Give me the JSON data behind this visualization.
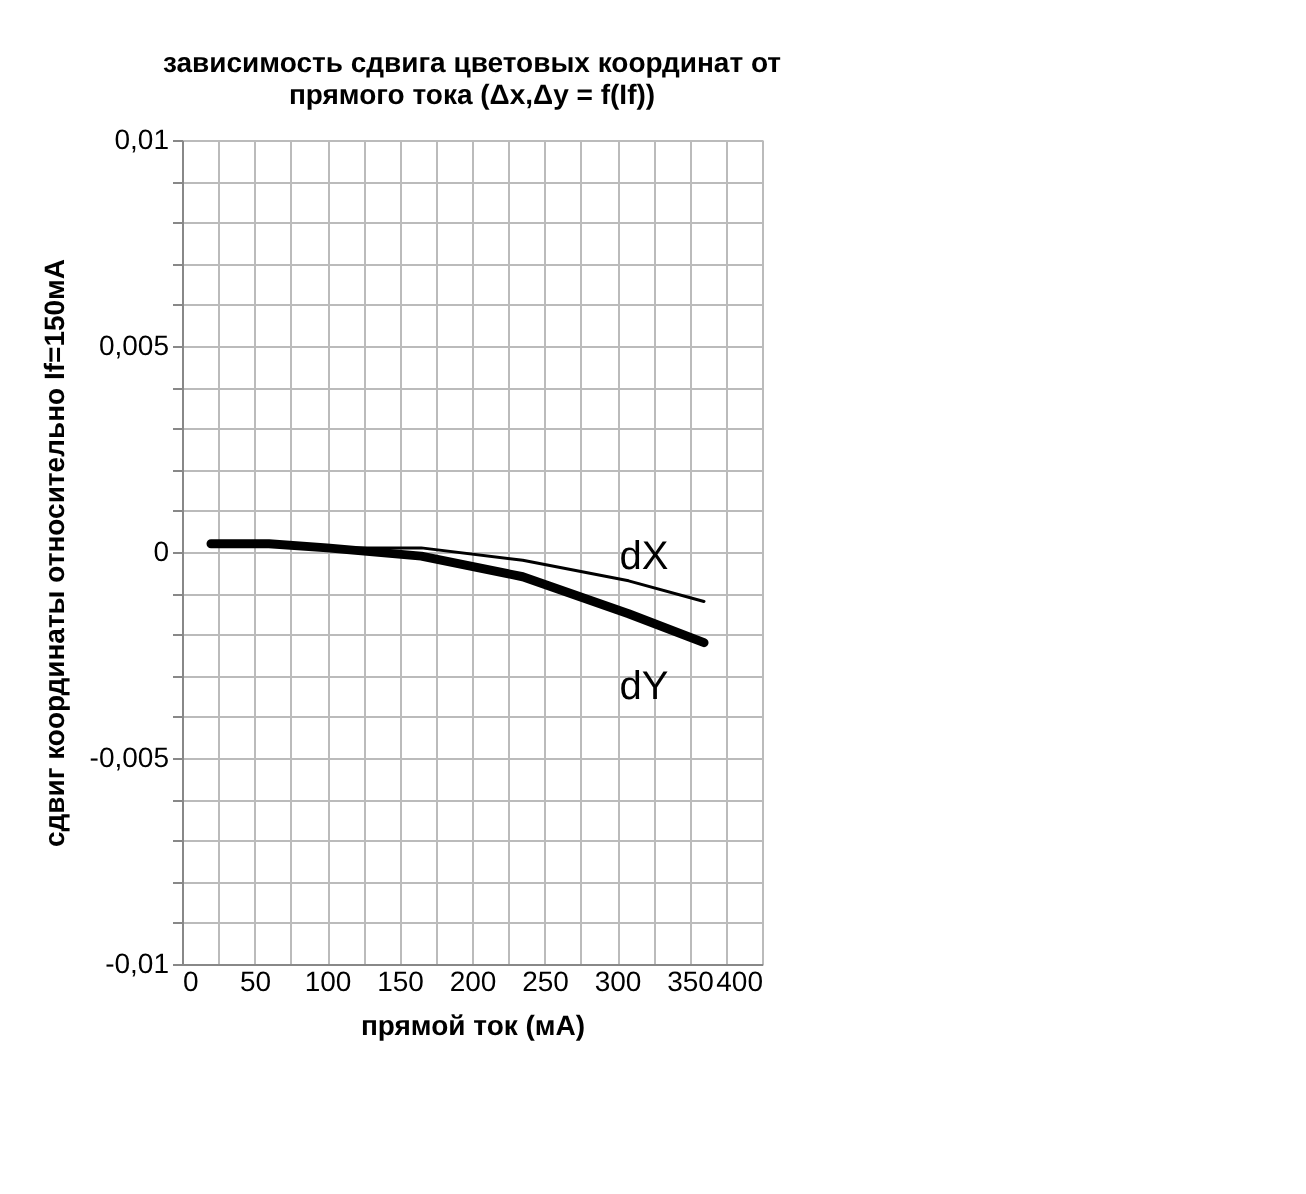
{
  "chart_data": {
    "type": "line",
    "title": [
      "зависимость сдвига цветовых координат от",
      "прямого тока (Δx,Δy = f(If))"
    ],
    "xlabel": "прямой ток (мА)",
    "ylabel": "сдвиг координаты относительно If=150мА",
    "x": [
      20,
      60,
      100,
      165,
      235,
      308,
      360
    ],
    "series": [
      {
        "name": "dX",
        "color": "#000000",
        "values": [
          0.0002,
          0.0002,
          0.0001,
          0.0001,
          -0.0002,
          -0.0007,
          -0.0012
        ]
      },
      {
        "name": "dY",
        "color": "#000000",
        "values": [
          0.0002,
          0.0002,
          0.0001,
          -0.0001,
          -0.0006,
          -0.0015,
          -0.0022
        ]
      }
    ],
    "xlim": [
      0,
      400
    ],
    "ylim": [
      -0.01,
      0.01
    ],
    "xticks": [
      0,
      {
        "value": 25,
        "label": null
      },
      50,
      {
        "value": 75,
        "label": null
      },
      100,
      {
        "value": 125,
        "label": null
      },
      150,
      {
        "value": 175,
        "label": null
      },
      200,
      {
        "value": 225,
        "label": null
      },
      250,
      {
        "value": 275,
        "label": null
      },
      300,
      {
        "value": 325,
        "label": null
      },
      350,
      {
        "value": 375,
        "label": null
      },
      400
    ],
    "yticks": [
      {
        "value": -0.01,
        "label": "-0,01"
      },
      {
        "value": -0.009,
        "label": null
      },
      {
        "value": -0.008,
        "label": null
      },
      {
        "value": -0.007,
        "label": null
      },
      {
        "value": -0.006,
        "label": null
      },
      {
        "value": -0.005,
        "label": "-0,005"
      },
      {
        "value": -0.004,
        "label": null
      },
      {
        "value": -0.003,
        "label": null
      },
      {
        "value": -0.002,
        "label": null
      },
      {
        "value": -0.001,
        "label": null
      },
      {
        "value": 0,
        "label": "0"
      },
      {
        "value": 0.001,
        "label": null
      },
      {
        "value": 0.002,
        "label": null
      },
      {
        "value": 0.003,
        "label": null
      },
      {
        "value": 0.004,
        "label": null
      },
      {
        "value": 0.005,
        "label": "0,005"
      },
      {
        "value": 0.006,
        "label": null
      },
      {
        "value": 0.007,
        "label": null
      },
      {
        "value": 0.008,
        "label": null
      },
      {
        "value": 0.009,
        "label": null
      },
      {
        "value": 0.01,
        "label": "0,01"
      }
    ],
    "grid": true,
    "marker": "none",
    "line_style": "solid"
  }
}
